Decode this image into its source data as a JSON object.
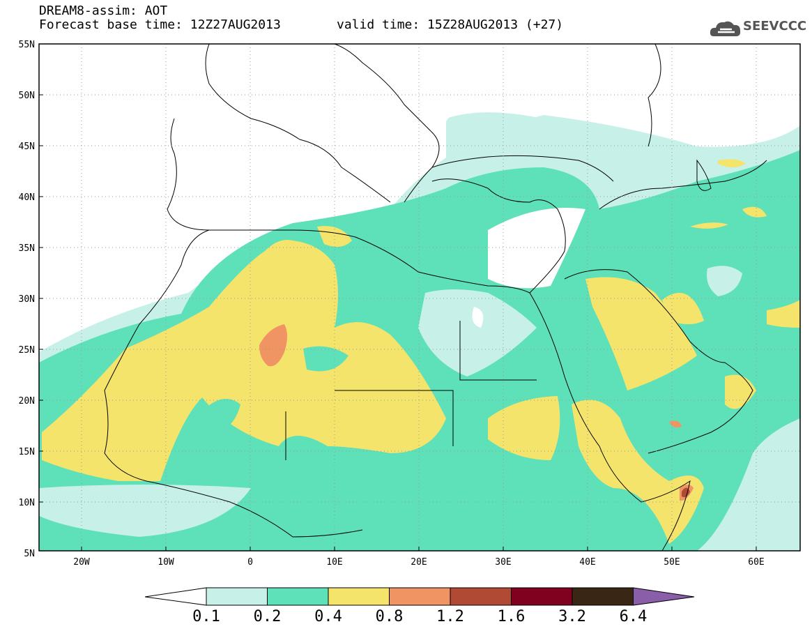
{
  "header": {
    "model_line": "DREAM8-assim: AOT",
    "base_time_line": "Forecast base time: 12Z27AUG2013",
    "valid_time_line": "valid time: 15Z28AUG2013 (+27)"
  },
  "logo": {
    "text": "SEEVCCC",
    "icon": "cloud-logo-icon"
  },
  "map": {
    "lon_range": [
      -25,
      65
    ],
    "lat_range": [
      5,
      55
    ],
    "lat_labels": [
      "55N",
      "50N",
      "45N",
      "40N",
      "35N",
      "30N",
      "25N",
      "20N",
      "15N",
      "10N",
      "5N"
    ],
    "lon_labels": [
      "20W",
      "10W",
      "0",
      "10E",
      "20E",
      "30E",
      "40E",
      "50E",
      "60E"
    ],
    "grid": "dotted",
    "plume_peaks": [
      {
        "lon": 3.5,
        "lat": 25.5,
        "class": "0.8-1.2"
      },
      {
        "lon": 51,
        "lat": 10.5,
        "class": "1.2-1.6"
      }
    ]
  },
  "colorbar": {
    "labels": [
      "0.1",
      "0.2",
      "0.4",
      "0.8",
      "1.2",
      "1.6",
      "3.2",
      "6.4"
    ],
    "colors": [
      "#ffffff",
      "#c6f0e8",
      "#5ee0b8",
      "#f5e46c",
      "#f09464",
      "#b04a35",
      "#800020",
      "#3a2614",
      "#8a5ea8"
    ]
  }
}
